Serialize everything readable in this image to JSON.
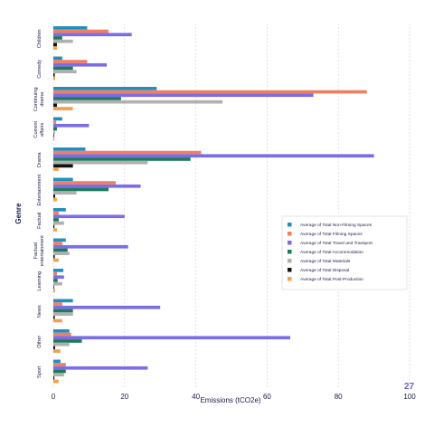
{
  "page_number": "27",
  "chart_data": {
    "type": "bar",
    "orientation": "horizontal",
    "xlabel": "Emissions (tCO2e)",
    "ylabel": "Genre",
    "xlim": [
      0,
      100
    ],
    "xticks": [
      0,
      20,
      40,
      60,
      80,
      100
    ],
    "grid": "vertical dashed",
    "legend_position": "right",
    "categories": [
      "Children",
      "Comedy",
      "Continuing drama",
      "Current affairs",
      "Drama",
      "Entertainment",
      "Factual",
      "Factual entertainment",
      "Learning",
      "News",
      "Other",
      "Sport"
    ],
    "series": [
      {
        "name": "Average of Total Non-Filming Spaces",
        "color": "#1f8fbf",
        "values": [
          9.5,
          2.5,
          29,
          2.5,
          9,
          5.5,
          3.5,
          3.5,
          2.8,
          5.5,
          4.5,
          2
        ]
      },
      {
        "name": "Average of Total Filming Spaces",
        "color": "#f07f60",
        "values": [
          15.5,
          9.5,
          88,
          0.8,
          41.5,
          17.5,
          1.5,
          2.5,
          1,
          2.5,
          5,
          3.5
        ]
      },
      {
        "name": "Average of Total Travel and Transport",
        "color": "#7b6de6",
        "values": [
          22,
          15,
          73,
          10,
          90,
          24.5,
          20,
          21,
          3,
          30,
          66.5,
          26.5
        ]
      },
      {
        "name": "Average of Total Accommodation",
        "color": "#1e7a5a",
        "values": [
          2.5,
          5.5,
          19,
          1,
          38.5,
          15.5,
          1.5,
          4,
          1.2,
          5.5,
          8,
          3.5
        ]
      },
      {
        "name": "Average of Total Materials",
        "color": "#b0b0b0",
        "values": [
          5.5,
          6.5,
          47.5,
          0.5,
          26.5,
          6.5,
          3,
          4.5,
          2.5,
          5.5,
          4.5,
          3
        ]
      },
      {
        "name": "Average of Total Disposal",
        "color": "#111111",
        "values": [
          1,
          0.4,
          1,
          0.2,
          5.5,
          0.5,
          0.3,
          0.4,
          0.2,
          0.4,
          0.5,
          0.3
        ]
      },
      {
        "name": "Average of Total Post-Production",
        "color": "#f0a050",
        "values": [
          1,
          0.5,
          5.5,
          0.3,
          1.5,
          1,
          1,
          1.5,
          0.5,
          2.5,
          2,
          1.5
        ]
      }
    ]
  }
}
